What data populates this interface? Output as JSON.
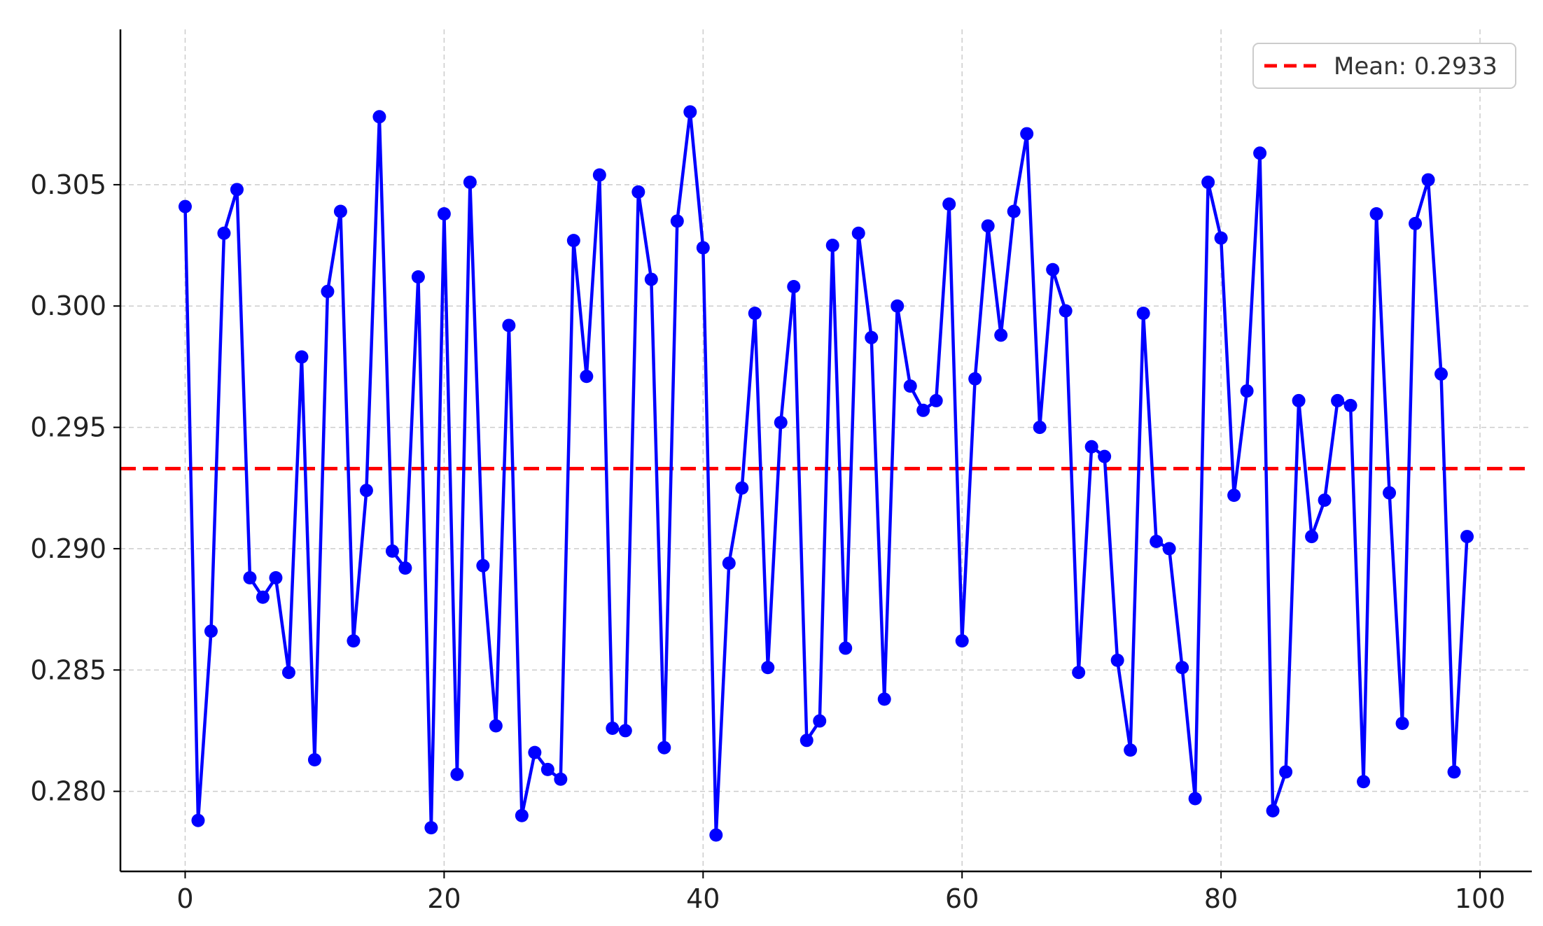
{
  "chart_data": {
    "type": "line",
    "title": "",
    "xlabel": "",
    "ylabel": "",
    "xlim": [
      -5,
      104
    ],
    "ylim": [
      0.2767,
      0.3114
    ],
    "x_ticks": [
      0,
      20,
      40,
      60,
      80,
      100
    ],
    "x_tick_labels": [
      "0",
      "20",
      "40",
      "60",
      "80",
      "100"
    ],
    "y_ticks": [
      0.28,
      0.285,
      0.29,
      0.295,
      0.3,
      0.305
    ],
    "y_tick_labels": [
      "0.280",
      "0.285",
      "0.290",
      "0.295",
      "0.300",
      "0.305"
    ],
    "grid": true,
    "legend_position": "top-right",
    "series": [
      {
        "color": "#0000ff",
        "marker": "circle",
        "x": [
          0,
          1,
          2,
          3,
          4,
          5,
          6,
          7,
          8,
          9,
          10,
          11,
          12,
          13,
          14,
          15,
          16,
          17,
          18,
          19,
          20,
          21,
          22,
          23,
          24,
          25,
          26,
          27,
          28,
          29,
          30,
          31,
          32,
          33,
          34,
          35,
          36,
          37,
          38,
          39,
          40,
          41,
          42,
          43,
          44,
          45,
          46,
          47,
          48,
          49,
          50,
          51,
          52,
          53,
          54,
          55,
          56,
          57,
          58,
          59,
          60,
          61,
          62,
          63,
          64,
          65,
          66,
          67,
          68,
          69,
          70,
          71,
          72,
          73,
          74,
          75,
          76,
          77,
          78,
          79,
          80,
          81,
          82,
          83,
          84,
          85,
          86,
          87,
          88,
          89,
          90,
          91,
          92,
          93,
          94,
          95,
          96,
          97,
          98,
          99
        ],
        "values": [
          0.3041,
          0.2788,
          0.2866,
          0.303,
          0.3048,
          0.2888,
          0.288,
          0.2888,
          0.2849,
          0.2979,
          0.2813,
          0.3006,
          0.3039,
          0.2862,
          0.2924,
          0.3078,
          0.2899,
          0.2892,
          0.3012,
          0.2785,
          0.3038,
          0.2807,
          0.3051,
          0.2893,
          0.2827,
          0.2992,
          0.279,
          0.2816,
          0.2809,
          0.2805,
          0.3027,
          0.2971,
          0.3054,
          0.2826,
          0.2825,
          0.3047,
          0.3011,
          0.2818,
          0.3035,
          0.308,
          0.3024,
          0.2782,
          0.2894,
          0.2925,
          0.2997,
          0.2851,
          0.2952,
          0.3008,
          0.2821,
          0.2829,
          0.3025,
          0.2859,
          0.303,
          0.2987,
          0.2838,
          0.3,
          0.2967,
          0.2957,
          0.2961,
          0.3042,
          0.2862,
          0.297,
          0.3033,
          0.2988,
          0.3039,
          0.3071,
          0.295,
          0.3015,
          0.2998,
          0.2849,
          0.2942,
          0.2938,
          0.2854,
          0.2817,
          0.2997,
          0.2903,
          0.29,
          0.2851,
          0.2797,
          0.3051,
          0.3028,
          0.2922,
          0.2965,
          0.3063,
          0.2792,
          0.2808,
          0.2961,
          0.2905,
          0.292,
          0.2961,
          0.2959,
          0.2804,
          0.3038,
          0.2923,
          0.2828,
          0.3034,
          0.3052,
          0.2972,
          0.2808,
          0.2905
        ]
      },
      {
        "name": "Mean: 0.2933",
        "type": "hline",
        "value": 0.2933,
        "color": "#ff0000",
        "style": "dashed"
      }
    ]
  },
  "colors": {
    "line": "#0000ff",
    "mean": "#ff0000",
    "grid": "#cccccc",
    "axis": "#000000"
  }
}
